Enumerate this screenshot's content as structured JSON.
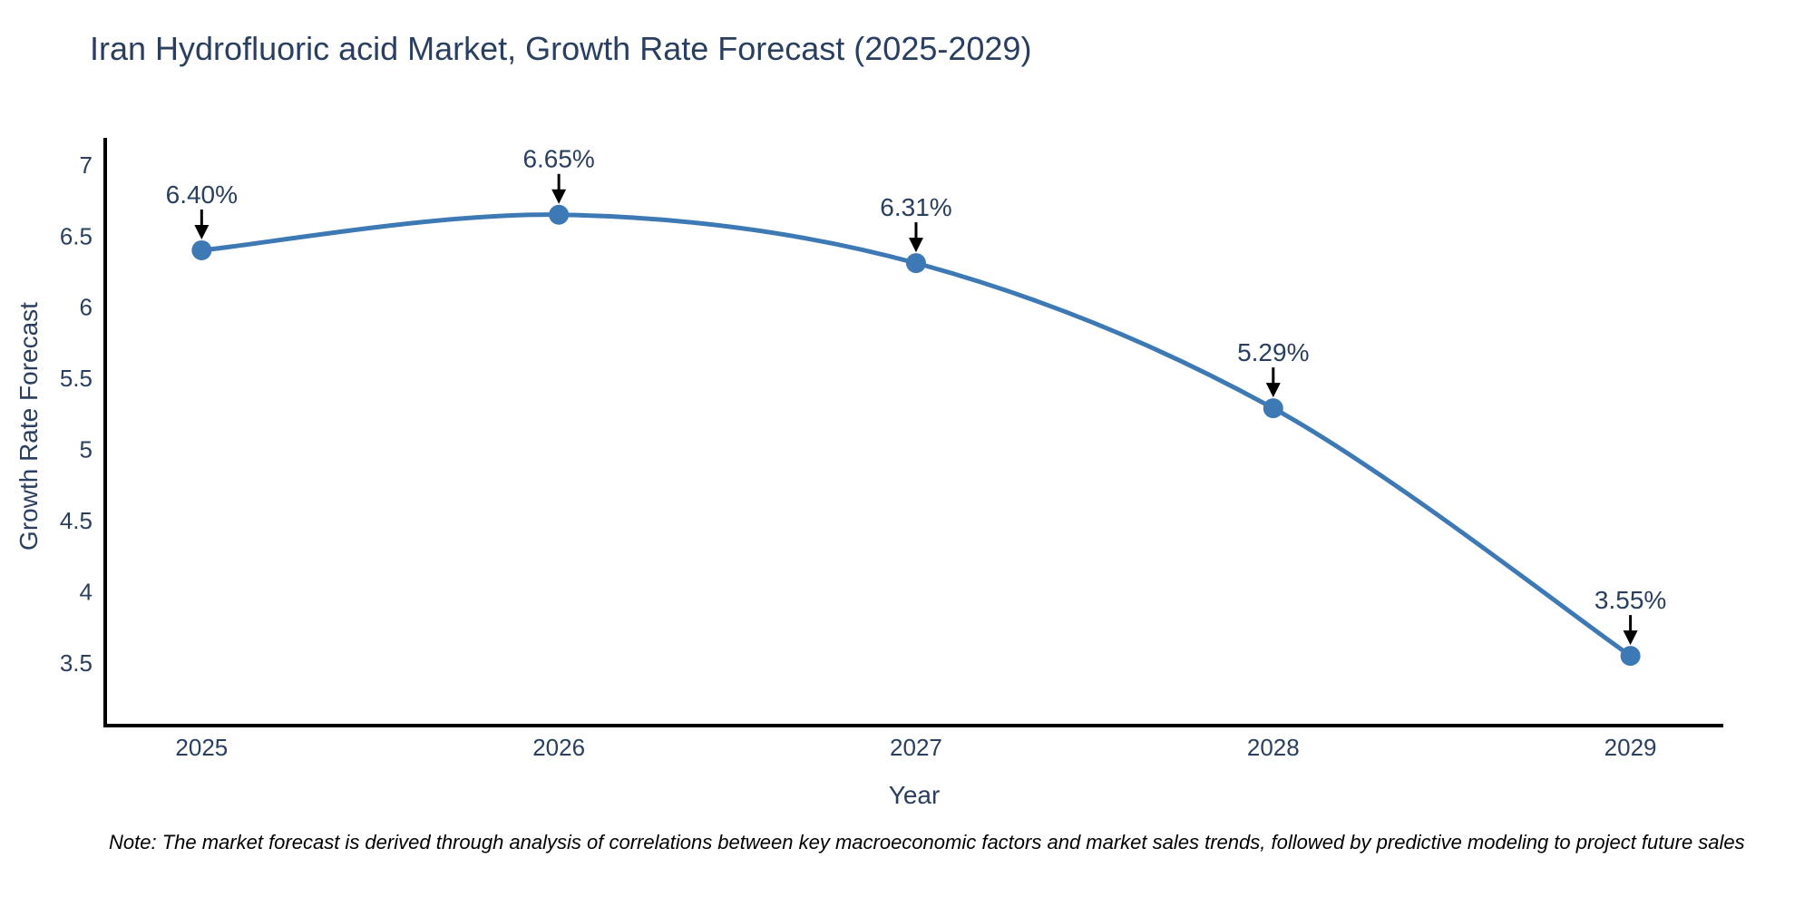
{
  "title": "Iran Hydrofluoric acid Market, Growth Rate Forecast (2025-2029)",
  "note": "Note: The market forecast is derived through analysis of correlations between key macroeconomic factors and market sales trends, followed by predictive modeling to project future sales",
  "chart_data": {
    "type": "line",
    "title": "Iran Hydrofluoric acid Market, Growth Rate Forecast (2025-2029)",
    "x": [
      2025,
      2026,
      2027,
      2028,
      2029
    ],
    "values": [
      6.4,
      6.65,
      6.31,
      5.29,
      3.55
    ],
    "point_labels": [
      "6.40%",
      "6.65%",
      "6.31%",
      "5.29%",
      "3.55%"
    ],
    "xlabel": "Year",
    "ylabel": "Growth Rate Forecast",
    "x_tick_labels": [
      "2025",
      "2026",
      "2027",
      "2028",
      "2029"
    ],
    "y_ticks": [
      3.5,
      4,
      4.5,
      5,
      5.5,
      6,
      6.5,
      7
    ],
    "y_tick_labels": [
      "3.5",
      "4",
      "4.5",
      "5",
      "5.5",
      "6",
      "6.5",
      "7"
    ],
    "xlim": [
      2024.73,
      2029.26
    ],
    "ylim": [
      3.06,
      7.19
    ],
    "grid": false,
    "legend": "none",
    "line_shape": "spline",
    "colors": {
      "line": "#3d7ab5",
      "marker": "#3d7ab5",
      "axis": "#000000",
      "text": "#2a3f5f",
      "annotation_arrow": "#000000",
      "note_text": "#000000",
      "background": "#ffffff"
    }
  }
}
